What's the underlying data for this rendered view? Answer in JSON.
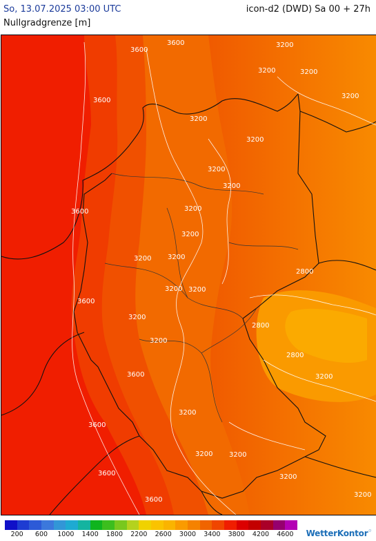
{
  "header": {
    "datetime": "So, 13.07.2025 03:00 UTC",
    "model": "icon-d2 (DWD) Sa 00 + 27h",
    "parameter": "Nullgradgrenze [m]"
  },
  "map": {
    "isoline_labels": [
      {
        "text": "3600"
      },
      {
        "text": "3600"
      },
      {
        "text": "3200"
      },
      {
        "text": "3200"
      },
      {
        "text": "3600"
      },
      {
        "text": "3200"
      },
      {
        "text": "3200"
      },
      {
        "text": "3200"
      },
      {
        "text": "3200"
      },
      {
        "text": "3200"
      },
      {
        "text": "3200"
      },
      {
        "text": "3200"
      },
      {
        "text": "3600"
      },
      {
        "text": "3200"
      },
      {
        "text": "3200"
      },
      {
        "text": "3200"
      },
      {
        "text": "3200"
      },
      {
        "text": "3600"
      },
      {
        "text": "3200"
      },
      {
        "text": "3200"
      },
      {
        "text": "2800"
      },
      {
        "text": "2800"
      },
      {
        "text": "2800"
      },
      {
        "text": "3200"
      },
      {
        "text": "3600"
      },
      {
        "text": "3200"
      },
      {
        "text": "3600"
      },
      {
        "text": "3200"
      },
      {
        "text": "3200"
      },
      {
        "text": "3200"
      },
      {
        "text": "3600"
      },
      {
        "text": "3600"
      },
      {
        "text": "3200"
      },
      {
        "text": "3200"
      }
    ]
  },
  "legend": {
    "colors": [
      "#1010c8",
      "#1e3cd2",
      "#2d5ad7",
      "#3c78dc",
      "#3296d7",
      "#1eaad2",
      "#14b4a0",
      "#0fb41e",
      "#3cbe1e",
      "#78c81e",
      "#b4d21e",
      "#f0d200",
      "#fac300",
      "#fab400",
      "#fa9b00",
      "#f58200",
      "#f06400",
      "#f04600",
      "#f01e00",
      "#dc0000",
      "#c30000",
      "#aa0028",
      "#96006e",
      "#b400b4"
    ],
    "ticks": [
      "200",
      "600",
      "1000",
      "1400",
      "1800",
      "2200",
      "2600",
      "3000",
      "3400",
      "3800",
      "4200",
      "4600"
    ]
  },
  "brand": {
    "name": "WetterKontor"
  }
}
